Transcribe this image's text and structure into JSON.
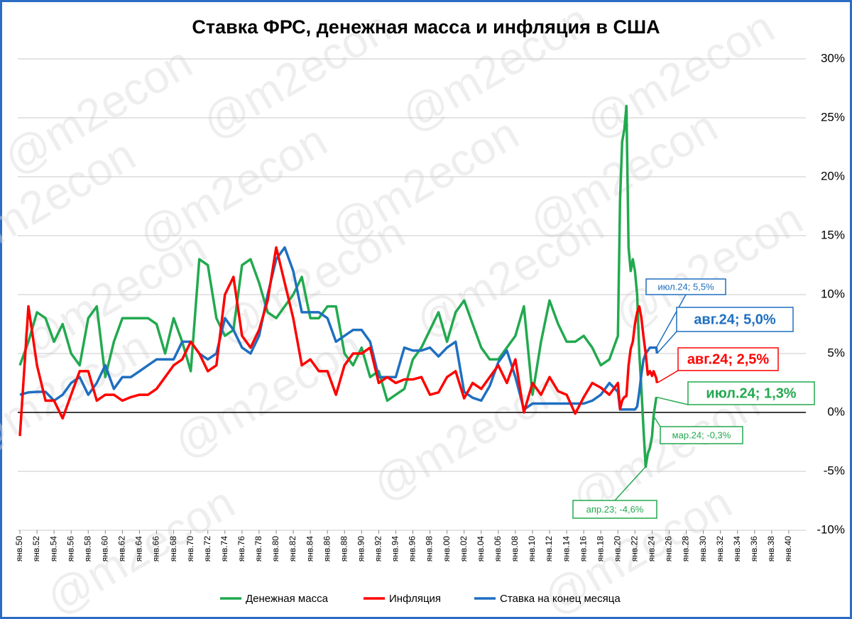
{
  "chart_data": {
    "type": "line",
    "title": "Ставка ФРС, денежная масса и инфляция в США",
    "watermark": "@m2econ",
    "x": [
      1950,
      1951,
      1952,
      1953,
      1954,
      1955,
      1956,
      1957,
      1958,
      1959,
      1960,
      1961,
      1962,
      1963,
      1964,
      1965,
      1966,
      1967,
      1968,
      1969,
      1970,
      1971,
      1972,
      1973,
      1974,
      1975,
      1976,
      1977,
      1978,
      1979,
      1980,
      1981,
      1982,
      1983,
      1984,
      1985,
      1986,
      1987,
      1988,
      1989,
      1990,
      1991,
      1992,
      1993,
      1994,
      1995,
      1996,
      1997,
      1998,
      1999,
      2000,
      2001,
      2002,
      2003,
      2004,
      2005,
      2006,
      2007,
      2008,
      2009,
      2010,
      2011,
      2012,
      2013,
      2014,
      2015,
      2016,
      2017,
      2018,
      2019,
      2020,
      2020.25,
      2020.5,
      2020.75,
      2021,
      2021.25,
      2021.5,
      2021.75,
      2022,
      2022.25,
      2022.5,
      2022.75,
      2023,
      2023.25,
      2023.5,
      2023.75,
      2024,
      2024.17,
      2024.5,
      2024.58
    ],
    "series": [
      {
        "name": "Денежная масса",
        "color": "#22a94f",
        "values": [
          4,
          6,
          8.5,
          8,
          6,
          7.5,
          5,
          4,
          8,
          9,
          3,
          6,
          8,
          8,
          8,
          8,
          7.5,
          5,
          8,
          6,
          3.5,
          13,
          12.5,
          8,
          6.5,
          7,
          12.5,
          13,
          11,
          8.5,
          8,
          9,
          10,
          11.5,
          8,
          8,
          9,
          9,
          5,
          4,
          5.5,
          3,
          3.5,
          1,
          1.5,
          2,
          4.5,
          5.5,
          7,
          8.5,
          6,
          8.5,
          9.5,
          7.5,
          5.5,
          4.5,
          4.5,
          5.5,
          6.5,
          9,
          1.5,
          6,
          9.5,
          7.5,
          6,
          6,
          6.5,
          5.5,
          4,
          4.5,
          6.5,
          18,
          23,
          24,
          26,
          14,
          12,
          13,
          12,
          10,
          5,
          2,
          -1.5,
          -4.6,
          -3.5,
          -3,
          -2,
          -0.3,
          1.3,
          null
        ]
      },
      {
        "name": "Инфляция",
        "color": "#ff0000",
        "values": [
          -2,
          9,
          4,
          1,
          1,
          -0.5,
          1.5,
          3.5,
          3.5,
          1,
          1.5,
          1.5,
          1,
          1.3,
          1.5,
          1.5,
          2,
          3,
          4,
          4.5,
          6,
          5,
          3.5,
          4,
          10,
          11.5,
          6.5,
          5.5,
          7,
          9.5,
          14,
          11,
          8,
          4,
          4.5,
          3.5,
          3.5,
          1.5,
          4,
          5,
          5,
          5.5,
          2.5,
          3,
          2.5,
          2.8,
          2.8,
          3,
          1.5,
          1.7,
          3,
          3.5,
          1.2,
          2.5,
          2,
          3,
          4,
          2.5,
          4.5,
          0,
          2.5,
          1.5,
          3,
          1.8,
          1.5,
          -0.1,
          1.3,
          2.5,
          2.1,
          1.5,
          2.5,
          0.3,
          1,
          1.3,
          1.4,
          4,
          5.4,
          6,
          7.5,
          8.5,
          9,
          8,
          6.4,
          5,
          3.2,
          3.5,
          3.1,
          3.5,
          2.9,
          2.5
        ]
      },
      {
        "name": "Ставка на конец месяца",
        "color": "#1f6fc0",
        "values": [
          1.5,
          1.7,
          1.75,
          1.75,
          1,
          1.5,
          2.5,
          3,
          1.5,
          2.5,
          4,
          2,
          3,
          3,
          3.5,
          4,
          4.5,
          4.5,
          4.5,
          6,
          6,
          5,
          4.5,
          5,
          8,
          7,
          5.5,
          5,
          6.5,
          10,
          13,
          14,
          12,
          8.5,
          8.5,
          8.5,
          8,
          6,
          6.5,
          7,
          7,
          6,
          3,
          3,
          3,
          5.5,
          5.25,
          5.25,
          5.5,
          4.75,
          5.5,
          6,
          1.75,
          1.25,
          1,
          2.25,
          4.25,
          5.25,
          3,
          0.25,
          0.75,
          0.75,
          0.75,
          0.75,
          0.75,
          0.75,
          0.75,
          1,
          1.5,
          2.5,
          1.75,
          0.25,
          0.25,
          0.25,
          0.25,
          0.25,
          0.25,
          0.25,
          0.25,
          0.5,
          1.75,
          3.25,
          4.5,
          5,
          5.25,
          5.5,
          5.5,
          5.5,
          5.5,
          5.0
        ]
      }
    ],
    "xlim": [
      1949.75,
      2042
    ],
    "xticks": [
      {
        "value": 1950,
        "label": "янв.50"
      },
      {
        "value": 1952,
        "label": "янв.52"
      },
      {
        "value": 1954,
        "label": "янв.54"
      },
      {
        "value": 1956,
        "label": "янв.56"
      },
      {
        "value": 1958,
        "label": "янв.58"
      },
      {
        "value": 1960,
        "label": "янв.60"
      },
      {
        "value": 1962,
        "label": "янв.62"
      },
      {
        "value": 1964,
        "label": "янв.64"
      },
      {
        "value": 1966,
        "label": "янв.66"
      },
      {
        "value": 1968,
        "label": "янв.68"
      },
      {
        "value": 1970,
        "label": "янв.70"
      },
      {
        "value": 1972,
        "label": "янв.72"
      },
      {
        "value": 1974,
        "label": "янв.74"
      },
      {
        "value": 1976,
        "label": "янв.76"
      },
      {
        "value": 1978,
        "label": "янв.78"
      },
      {
        "value": 1980,
        "label": "янв.80"
      },
      {
        "value": 1982,
        "label": "янв.82"
      },
      {
        "value": 1984,
        "label": "янв.84"
      },
      {
        "value": 1986,
        "label": "янв.86"
      },
      {
        "value": 1988,
        "label": "янв.88"
      },
      {
        "value": 1990,
        "label": "янв.90"
      },
      {
        "value": 1992,
        "label": "янв.92"
      },
      {
        "value": 1994,
        "label": "янв.94"
      },
      {
        "value": 1996,
        "label": "янв.96"
      },
      {
        "value": 1998,
        "label": "янв.98"
      },
      {
        "value": 2000,
        "label": "янв.00"
      },
      {
        "value": 2002,
        "label": "янв.02"
      },
      {
        "value": 2004,
        "label": "янв.04"
      },
      {
        "value": 2006,
        "label": "янв.06"
      },
      {
        "value": 2008,
        "label": "янв.08"
      },
      {
        "value": 2010,
        "label": "янв.10"
      },
      {
        "value": 2012,
        "label": "янв.12"
      },
      {
        "value": 2014,
        "label": "янв.14"
      },
      {
        "value": 2016,
        "label": "янв.16"
      },
      {
        "value": 2018,
        "label": "янв.18"
      },
      {
        "value": 2020,
        "label": "янв.20"
      },
      {
        "value": 2022,
        "label": "янв.22"
      },
      {
        "value": 2024,
        "label": "янв.24"
      },
      {
        "value": 2026,
        "label": "янв.26"
      },
      {
        "value": 2028,
        "label": "янв.28"
      },
      {
        "value": 2030,
        "label": "янв.30"
      },
      {
        "value": 2032,
        "label": "янв.32"
      },
      {
        "value": 2034,
        "label": "янв.34"
      },
      {
        "value": 2036,
        "label": "янв.36"
      },
      {
        "value": 2038,
        "label": "янв.38"
      },
      {
        "value": 2040,
        "label": "янв.40"
      }
    ],
    "ylim": [
      -10,
      30
    ],
    "yticks": [
      {
        "value": -10,
        "label": "-10%"
      },
      {
        "value": -5,
        "label": "-5%"
      },
      {
        "value": 0,
        "label": "0%"
      },
      {
        "value": 5,
        "label": "5%"
      },
      {
        "value": 10,
        "label": "10%"
      },
      {
        "value": 15,
        "label": "15%"
      },
      {
        "value": 20,
        "label": "20%"
      },
      {
        "value": 25,
        "label": "25%"
      },
      {
        "value": 30,
        "label": "30%"
      }
    ],
    "grid": true,
    "legend": "bottom",
    "annotations": [
      "июл.24; 5,5%",
      "авг.24; 5,0%",
      "авг.24; 2,5%",
      "июл.24; 1,3%",
      "мар.24; -0,3%",
      "апр.23; -4,6%"
    ]
  }
}
